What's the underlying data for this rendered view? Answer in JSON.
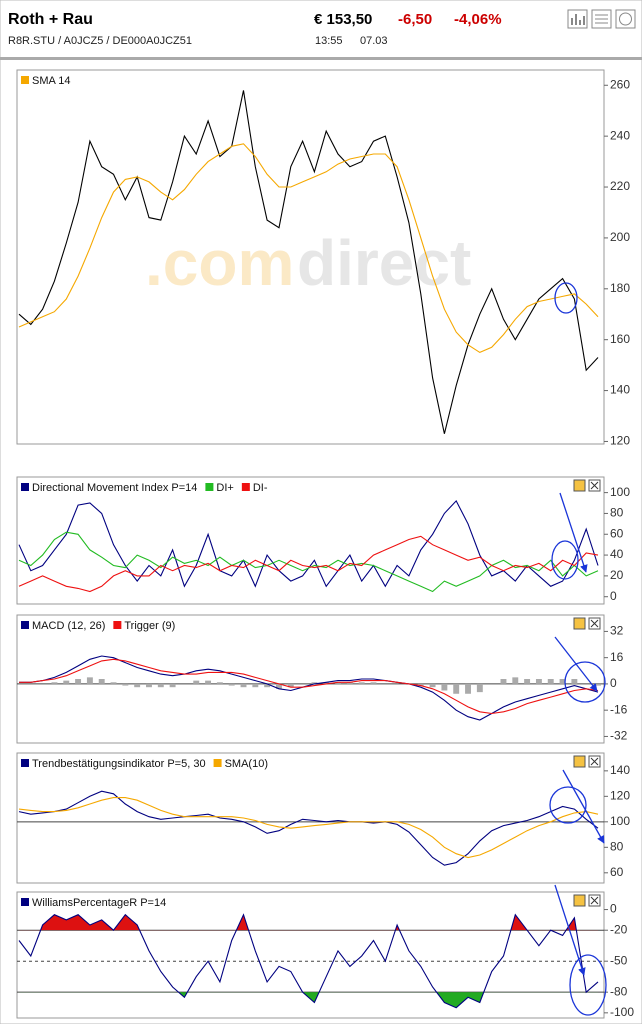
{
  "header": {
    "title": "Roth + Rau",
    "identifiers": "R8R.STU  /  A0JCZ5  /  DE000A0JCZ51",
    "price": "€ 153,50",
    "change": "-6,50",
    "change_percent": "-4,06%",
    "time": "13:55",
    "date": "07.03"
  },
  "watermark": {
    "prefix": ".com",
    "brand": "direct"
  },
  "chart_data": [
    {
      "type": "line",
      "ylim": [
        119,
        266
      ],
      "yticks": [
        120,
        140,
        160,
        180,
        200,
        220,
        240,
        260
      ],
      "series": [
        {
          "color": "#000000",
          "values": [
            170,
            166,
            172,
            183,
            198,
            214,
            238,
            228,
            225,
            215,
            224,
            208,
            207,
            222,
            240,
            233,
            246,
            232,
            236,
            258,
            228,
            207,
            204,
            228,
            238,
            226,
            242,
            233,
            228,
            230,
            238,
            240,
            224,
            206,
            178,
            145,
            123,
            142,
            158,
            170,
            180,
            168,
            160,
            168,
            176,
            180,
            184,
            176,
            148,
            153
          ]
        },
        {
          "name": "SMA 14",
          "color": "#f5a800",
          "values": [
            165,
            167,
            169,
            171,
            176,
            185,
            196,
            208,
            218,
            223,
            224,
            222,
            218,
            215,
            219,
            225,
            230,
            233,
            236,
            237,
            232,
            225,
            220,
            220,
            222,
            224,
            226,
            229,
            231,
            232,
            233,
            233,
            228,
            215,
            200,
            185,
            172,
            163,
            158,
            155,
            157,
            162,
            168,
            173,
            175,
            176,
            177,
            178,
            174,
            169
          ]
        }
      ]
    },
    {
      "type": "line",
      "ylim": [
        -7,
        115
      ],
      "yticks": [
        0,
        20,
        40,
        60,
        80,
        100
      ],
      "series": [
        {
          "name": "Directional Movement Index P=14",
          "color": "#000080",
          "values": [
            50,
            25,
            30,
            45,
            60,
            88,
            90,
            80,
            50,
            30,
            15,
            30,
            20,
            45,
            10,
            30,
            60,
            25,
            20,
            35,
            10,
            40,
            25,
            15,
            20,
            35,
            10,
            25,
            40,
            15,
            30,
            10,
            30,
            20,
            45,
            60,
            80,
            92,
            70,
            40,
            20,
            25,
            15,
            30,
            20,
            10,
            15,
            35,
            65,
            30
          ]
        },
        {
          "name": "DI+",
          "color": "#22bb22",
          "values": [
            35,
            30,
            40,
            55,
            62,
            60,
            45,
            38,
            30,
            28,
            40,
            35,
            28,
            38,
            32,
            35,
            30,
            38,
            30,
            35,
            28,
            30,
            35,
            30,
            25,
            30,
            28,
            35,
            30,
            32,
            30,
            25,
            20,
            15,
            10,
            5,
            15,
            10,
            15,
            20,
            30,
            35,
            28,
            30,
            25,
            35,
            20,
            30,
            20,
            25
          ]
        },
        {
          "name": "DI-",
          "color": "#ee1111",
          "values": [
            10,
            15,
            20,
            15,
            10,
            8,
            5,
            10,
            20,
            25,
            20,
            20,
            30,
            25,
            30,
            28,
            32,
            25,
            30,
            28,
            35,
            30,
            25,
            35,
            30,
            28,
            30,
            25,
            32,
            30,
            40,
            45,
            50,
            55,
            58,
            50,
            45,
            40,
            35,
            38,
            30,
            25,
            30,
            28,
            32,
            25,
            35,
            30,
            42,
            40
          ]
        }
      ]
    },
    {
      "type": "line",
      "ylim": [
        -36,
        42
      ],
      "yticks": [
        -32,
        -16,
        0,
        16,
        32
      ],
      "ref_lines": [
        {
          "value": 0,
          "dashed": false
        }
      ],
      "series": [
        {
          "type": "bar",
          "color": "#aaaaaa",
          "values": [
            0,
            0,
            0,
            1,
            2,
            3,
            4,
            3,
            1,
            -1,
            -2,
            -2,
            -2,
            -2,
            0,
            2,
            2,
            1,
            -1,
            -2,
            -2,
            -2,
            -3,
            -2,
            0,
            1,
            1,
            1,
            1,
            1,
            1,
            0,
            0,
            0,
            -1,
            -2,
            -4,
            -6,
            -6,
            -5,
            0,
            3,
            4,
            3,
            3,
            3,
            3,
            3,
            0,
            -1
          ]
        },
        {
          "name": "MACD (12, 26)",
          "color": "#000080",
          "values": [
            1,
            1,
            2,
            4,
            7,
            11,
            15,
            17,
            16,
            13,
            10,
            8,
            6,
            5,
            6,
            8,
            9,
            8,
            6,
            4,
            2,
            0,
            -3,
            -4,
            -2,
            0,
            1,
            2,
            2,
            3,
            3,
            2,
            1,
            0,
            -2,
            -5,
            -10,
            -16,
            -20,
            -22,
            -18,
            -14,
            -11,
            -9,
            -7,
            -5,
            -3,
            -1,
            -3,
            -5
          ]
        },
        {
          "name": "Trigger (9)",
          "color": "#ee1111",
          "values": [
            1,
            1,
            2,
            3,
            5,
            8,
            11,
            14,
            15,
            14,
            12,
            10,
            8,
            7,
            6,
            6,
            7,
            7,
            7,
            6,
            4,
            2,
            0,
            -2,
            -2,
            -1,
            0,
            1,
            1,
            2,
            2,
            2,
            1,
            0,
            -1,
            -3,
            -6,
            -10,
            -14,
            -17,
            -18,
            -17,
            -15,
            -12,
            -10,
            -8,
            -6,
            -4,
            -3,
            -4
          ]
        }
      ]
    },
    {
      "type": "line",
      "ylim": [
        52,
        154
      ],
      "yticks": [
        60,
        80,
        100,
        120,
        140
      ],
      "ref_lines": [
        {
          "value": 100,
          "dashed": false
        }
      ],
      "series": [
        {
          "name": "Trendbestätigungsindikator P=5, 30",
          "color": "#000080",
          "values": [
            108,
            106,
            107,
            108,
            110,
            115,
            120,
            124,
            122,
            114,
            108,
            104,
            102,
            103,
            104,
            105,
            106,
            103,
            102,
            100,
            96,
            91,
            93,
            98,
            102,
            101,
            100,
            101,
            100,
            100,
            99,
            100,
            98,
            92,
            82,
            72,
            66,
            68,
            75,
            85,
            93,
            97,
            99,
            101,
            104,
            108,
            112,
            110,
            102,
            95
          ]
        },
        {
          "name": "SMA(10)",
          "color": "#f5a800",
          "values": [
            110,
            109,
            108,
            108,
            109,
            111,
            114,
            117,
            119,
            119,
            117,
            113,
            109,
            106,
            104,
            104,
            104,
            104,
            104,
            103,
            101,
            98,
            96,
            95,
            96,
            97,
            98,
            99,
            100,
            100,
            100,
            100,
            100,
            98,
            94,
            88,
            80,
            75,
            72,
            74,
            78,
            83,
            88,
            93,
            97,
            100,
            104,
            107,
            108,
            106
          ]
        }
      ]
    },
    {
      "type": "line",
      "ylim": [
        -105,
        17
      ],
      "yticks": [
        -100,
        -80,
        -50,
        -20,
        0
      ],
      "ref_lines": [
        {
          "value": -20,
          "dashed": false
        },
        {
          "value": -50,
          "dashed": true
        },
        {
          "value": -80,
          "dashed": false
        }
      ],
      "fills": [
        {
          "above": -20,
          "color": "#dd1111"
        },
        {
          "below": -80,
          "color": "#22aa22"
        }
      ],
      "series": [
        {
          "name": "WilliamsPercentageR P=14",
          "color": "#000080",
          "values": [
            -30,
            -45,
            -15,
            -5,
            -10,
            -5,
            -15,
            -10,
            -20,
            -5,
            -15,
            -40,
            -60,
            -75,
            -85,
            -65,
            -50,
            -70,
            -30,
            -5,
            -40,
            -70,
            -55,
            -60,
            -80,
            -90,
            -65,
            -40,
            -55,
            -45,
            -30,
            -50,
            -15,
            -40,
            -55,
            -75,
            -90,
            -95,
            -85,
            -90,
            -60,
            -45,
            -5,
            -20,
            -35,
            -20,
            -25,
            -8,
            -80,
            -70
          ]
        }
      ]
    }
  ]
}
